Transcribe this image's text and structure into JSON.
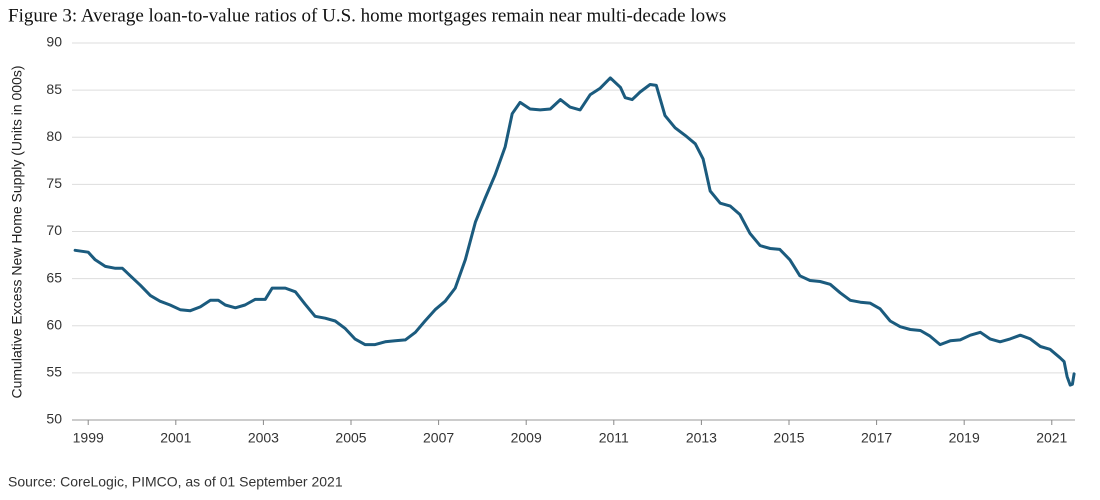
{
  "chart_data": {
    "type": "line",
    "title": "Figure 3: Average loan-to-value ratios of U.S. home mortgages remain near multi-decade lows",
    "y_label": "Cumulative Excess New Home Supply (Units in 000s)",
    "source": "Source: CoreLogic, PIMCO, as of 01 September 2021",
    "xlim": [
      1998.63,
      2021.53
    ],
    "xticks": [
      1999,
      2001,
      2003,
      2005,
      2007,
      2009,
      2011,
      2013,
      2015,
      2017,
      2019,
      2021
    ],
    "ylim": [
      50,
      90
    ],
    "yticks": [
      50,
      55,
      60,
      65,
      70,
      75,
      80,
      85,
      90
    ],
    "grid": true,
    "series": [
      {
        "name": "Average loan-to-value ratio",
        "color": "#1b5b7e",
        "x": [
          1998.7,
          1999.0,
          1999.16,
          1999.39,
          1999.62,
          1999.78,
          1999.96,
          2000.19,
          2000.42,
          2000.64,
          2000.87,
          2001.1,
          2001.33,
          2001.56,
          2001.79,
          2001.97,
          2002.13,
          2002.36,
          2002.58,
          2002.81,
          2003.04,
          2003.2,
          2003.5,
          2003.73,
          2003.95,
          2004.18,
          2004.41,
          2004.64,
          2004.87,
          2005.09,
          2005.32,
          2005.55,
          2005.78,
          2006.01,
          2006.24,
          2006.47,
          2006.69,
          2006.92,
          2007.15,
          2007.38,
          2007.61,
          2007.84,
          2008.06,
          2008.29,
          2008.52,
          2008.68,
          2008.86,
          2009.09,
          2009.32,
          2009.55,
          2009.78,
          2010.0,
          2010.23,
          2010.46,
          2010.69,
          2010.92,
          2011.15,
          2011.26,
          2011.42,
          2011.6,
          2011.83,
          2011.97,
          2012.17,
          2012.4,
          2012.63,
          2012.86,
          2013.04,
          2013.2,
          2013.43,
          2013.66,
          2013.88,
          2014.11,
          2014.34,
          2014.57,
          2014.79,
          2015.02,
          2015.25,
          2015.48,
          2015.71,
          2015.94,
          2016.17,
          2016.4,
          2016.63,
          2016.85,
          2017.08,
          2017.31,
          2017.54,
          2017.77,
          2018.0,
          2018.22,
          2018.45,
          2018.68,
          2018.91,
          2019.14,
          2019.37,
          2019.59,
          2019.82,
          2020.05,
          2020.28,
          2020.51,
          2020.74,
          2020.96,
          2021.19,
          2021.28,
          2021.35,
          2021.42,
          2021.47,
          2021.51
        ],
        "values": [
          68.0,
          67.8,
          67.0,
          66.3,
          66.1,
          66.1,
          65.3,
          64.3,
          63.2,
          62.6,
          62.2,
          61.7,
          61.6,
          62.0,
          62.7,
          62.7,
          62.2,
          61.9,
          62.2,
          62.8,
          62.8,
          64.0,
          64.0,
          63.6,
          62.3,
          61.0,
          60.8,
          60.5,
          59.7,
          58.6,
          58.0,
          58.0,
          58.3,
          58.4,
          58.5,
          59.3,
          60.5,
          61.7,
          62.6,
          64.0,
          67.0,
          71.0,
          73.5,
          76.0,
          79.0,
          82.5,
          83.7,
          83.0,
          82.9,
          83.0,
          84.0,
          83.2,
          82.9,
          84.5,
          85.2,
          86.3,
          85.3,
          84.2,
          84.0,
          84.8,
          85.6,
          85.5,
          82.3,
          81.0,
          80.2,
          79.3,
          77.7,
          74.3,
          73.0,
          72.7,
          71.8,
          69.8,
          68.5,
          68.2,
          68.1,
          67.0,
          65.3,
          64.8,
          64.7,
          64.4,
          63.5,
          62.7,
          62.5,
          62.4,
          61.8,
          60.5,
          59.9,
          59.6,
          59.5,
          58.9,
          58.0,
          58.4,
          58.5,
          59.0,
          59.3,
          58.6,
          58.3,
          58.6,
          59.0,
          58.6,
          57.8,
          57.5,
          56.6,
          56.2,
          54.6,
          53.7,
          53.8,
          54.9
        ]
      }
    ]
  }
}
